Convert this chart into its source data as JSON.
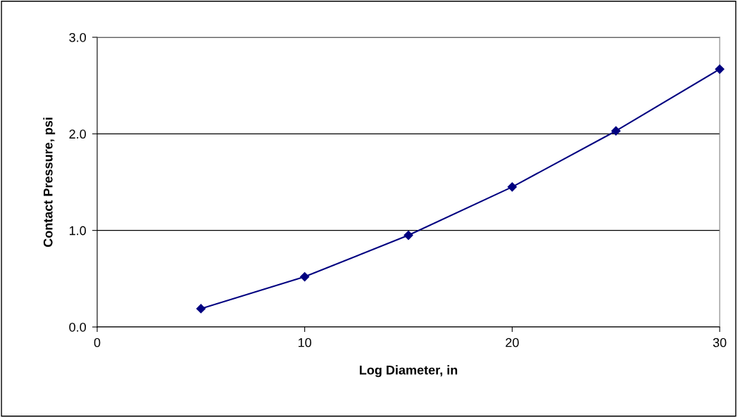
{
  "chart_data": {
    "type": "line",
    "xlabel": "Log Diameter, in",
    "ylabel": "Contact Pressure, psi",
    "x": [
      5,
      10,
      15,
      20,
      25,
      30
    ],
    "series": [
      {
        "color": "#000080",
        "values": [
          0.19,
          0.52,
          0.95,
          1.45,
          2.03,
          2.67
        ]
      }
    ],
    "xlim": [
      0,
      30
    ],
    "xticks": [
      0,
      10,
      20,
      30
    ],
    "ylim": [
      0,
      3
    ],
    "yticks": [
      {
        "value": 0,
        "label": "0.0"
      },
      {
        "value": 1,
        "label": "1.0"
      },
      {
        "value": 2,
        "label": "2.0"
      },
      {
        "value": 3,
        "label": "3.0"
      }
    ],
    "grid": "y",
    "marker": "diamond",
    "line_style": "solid"
  }
}
